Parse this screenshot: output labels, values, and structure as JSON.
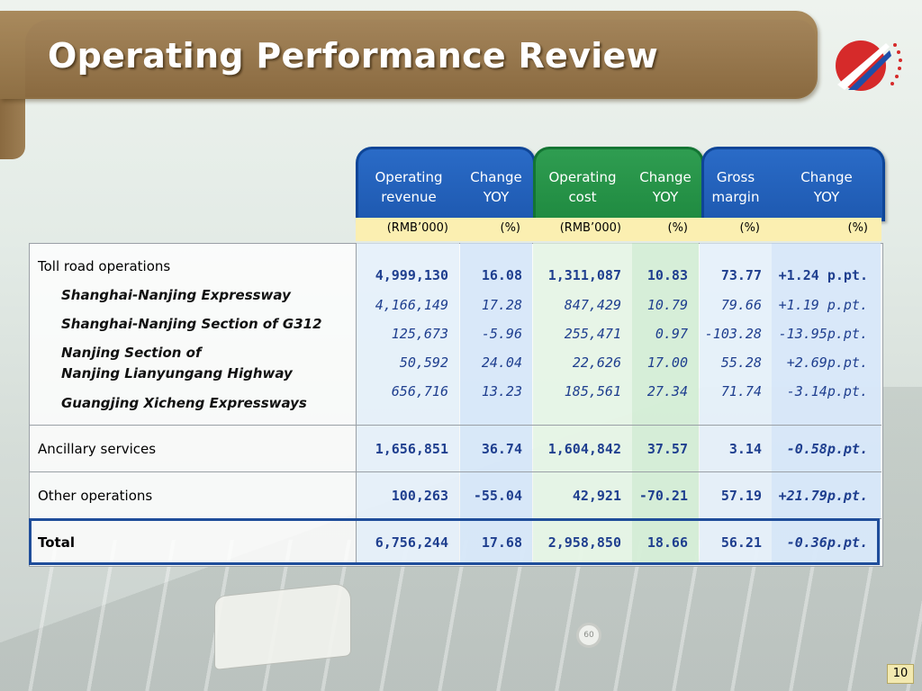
{
  "title": "Operating Performance Review",
  "page_number": "10",
  "colors": {
    "header_brown": "#8e6f44",
    "blue": "#1e59b0",
    "green": "#1f8a40",
    "number_blue": "#1f3f8f",
    "unit_row": "#fbefb1"
  },
  "columns": [
    {
      "line1": "Operating",
      "line2": "revenue",
      "unit": "(RMB’000)"
    },
    {
      "line1": "Change",
      "line2": "YOY",
      "unit": "(%)"
    },
    {
      "line1": "Operating",
      "line2": "cost",
      "unit": "(RMB’000)"
    },
    {
      "line1": "Change",
      "line2": "YOY",
      "unit": "(%)"
    },
    {
      "line1": "Gross",
      "line2": "margin",
      "unit": "(%)"
    },
    {
      "line1": "Change",
      "line2": "YOY",
      "unit": "(%)"
    }
  ],
  "rows": {
    "toll": {
      "label": "Toll road operations",
      "values": [
        "4,999,130",
        "16.08",
        "1,311,087",
        "10.83",
        "73.77",
        "+1.24 p.pt."
      ]
    },
    "sn": {
      "label": "Shanghai-Nanjing Expressway",
      "values": [
        "4,166,149",
        "17.28",
        "847,429",
        "10.79",
        "79.66",
        "+1.19 p.pt."
      ]
    },
    "g312": {
      "label": "Shanghai-Nanjing Section of G312",
      "values": [
        "125,673",
        "-5.96",
        "255,471",
        "0.97",
        "-103.28",
        "-13.95p.pt."
      ]
    },
    "nl": {
      "label1": "Nanjing Section of",
      "label2": "Nanjing Lianyungang Highway",
      "values": [
        "50,592",
        "24.04",
        "22,626",
        "17.00",
        "55.28",
        "+2.69p.pt."
      ]
    },
    "gx": {
      "label": "Guangjing Xicheng Expressways",
      "values": [
        "656,716",
        "13.23",
        "185,561",
        "27.34",
        "71.74",
        "-3.14p.pt."
      ]
    },
    "anc": {
      "label": "Ancillary services",
      "values": [
        "1,656,851",
        "36.74",
        "1,604,842",
        "37.57",
        "3.14",
        "-0.58p.pt."
      ]
    },
    "other": {
      "label": "Other operations",
      "values": [
        "100,263",
        "-55.04",
        "42,921",
        "-70.21",
        "57.19",
        "+21.79p.pt."
      ]
    },
    "total": {
      "label": "Total",
      "values": [
        "6,756,244",
        "17.68",
        "2,958,850",
        "18.66",
        "56.21",
        "-0.36p.pt."
      ]
    }
  }
}
